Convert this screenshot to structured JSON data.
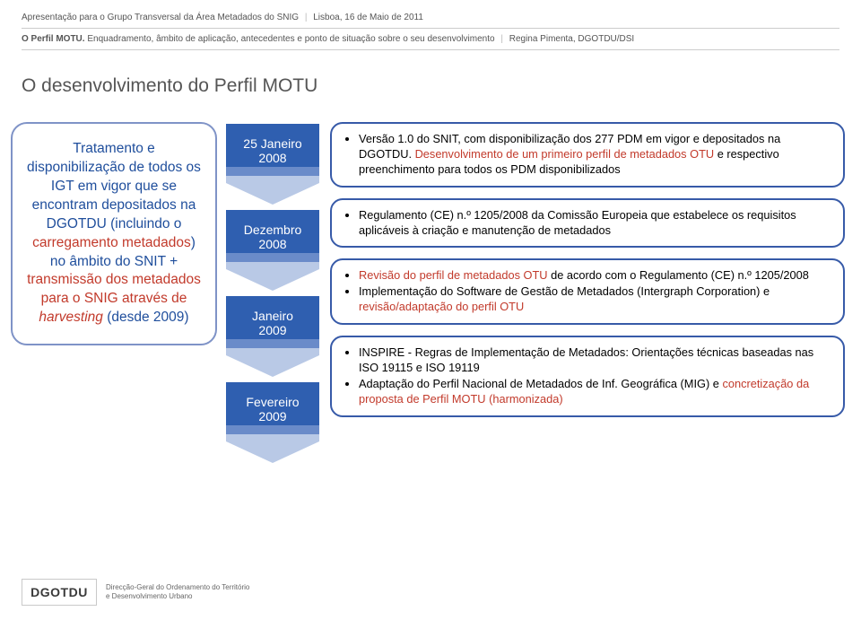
{
  "header": {
    "line1_a": "Apresentação para o Grupo Transversal da Área Metadados do SNIG",
    "line1_b": "Lisboa, 16 de Maio de 2011",
    "line2_a": "O Perfil MOTU.",
    "line2_b": "Enquadramento, âmbito de aplicação, antecedentes e ponto de situação sobre o seu desenvolvimento",
    "line2_c": "Regina Pimenta, DGOTDU/DSI"
  },
  "title": "O desenvolvimento do Perfil MOTU",
  "left_box_segments": [
    {
      "text": "Tratamento e disponibilização de todos os IGT em vigor que se encontram depositados na DGOTDU (incluindo o ",
      "color": "blue"
    },
    {
      "text": "carregamento metadados",
      "color": "red"
    },
    {
      "text": ") no âmbito do SNIT + ",
      "color": "blue"
    },
    {
      "text": "transmissão dos metadados para o SNIG através de ",
      "color": "red"
    },
    {
      "text": "harvesting",
      "color": "red",
      "italic": true
    },
    {
      "text": " (desde 2009)",
      "color": "blue"
    }
  ],
  "arrows": {
    "fill_main": "#2f5fb0",
    "fill_mid": "#6a8bc9",
    "fill_tip": "#b9c9e6",
    "items": [
      {
        "label_l1": "25 Janeiro",
        "label_l2": "2008"
      },
      {
        "label_l1": "Dezembro",
        "label_l2": "2008"
      },
      {
        "label_l1": "Janeiro",
        "label_l2": "2009"
      },
      {
        "label_l1": "Fevereiro",
        "label_l2": "2009"
      }
    ]
  },
  "boxes": {
    "box1": {
      "items": [
        {
          "segments": [
            {
              "text": "Versão 1.0 do SNIT, com disponibilização dos 277 PDM em vigor e depositados na DGOTDU. "
            },
            {
              "text": "Desenvolvimento de um primeiro perfil de metadados OTU",
              "red": true
            },
            {
              "text": " e respectivo preenchimento para todos os PDM disponibilizados"
            }
          ]
        }
      ]
    },
    "box2": {
      "items": [
        {
          "segments": [
            {
              "text": "Regulamento (CE) n.º 1205/2008 da Comissão Europeia que estabelece os requisitos aplicáveis à criação e manutenção de metadados"
            }
          ]
        }
      ]
    },
    "box3": {
      "items": [
        {
          "segments": [
            {
              "text": "Revisão do perfil  de metadados OTU",
              "red": true
            },
            {
              "text": " de acordo com o Regulamento  (CE) n.º 1205/2008"
            }
          ]
        },
        {
          "segments": [
            {
              "text": "Implementação do Software  de Gestão de Metadados (Intergraph Corporation) e "
            },
            {
              "text": "revisão/adaptação do perfil OTU",
              "red": true
            }
          ]
        }
      ]
    },
    "box4": {
      "items": [
        {
          "segments": [
            {
              "text": "INSPIRE -  Regras de Implementação de Metadados: Orientações técnicas baseadas nas ISO 19115 e ISO 19119"
            }
          ]
        },
        {
          "segments": [
            {
              "text": "Adaptação do Perfil Nacional de Metadados de Inf. Geográfica (MIG) e "
            },
            {
              "text": "concretização da proposta de Perfil MOTU (harmonizada)",
              "red": true
            }
          ]
        }
      ]
    }
  },
  "footer": {
    "logo": "DGOTDU",
    "sub_l1": "Direcção-Geral do Ordenamento do Território",
    "sub_l2": "e Desenvolvimento Urbano"
  }
}
